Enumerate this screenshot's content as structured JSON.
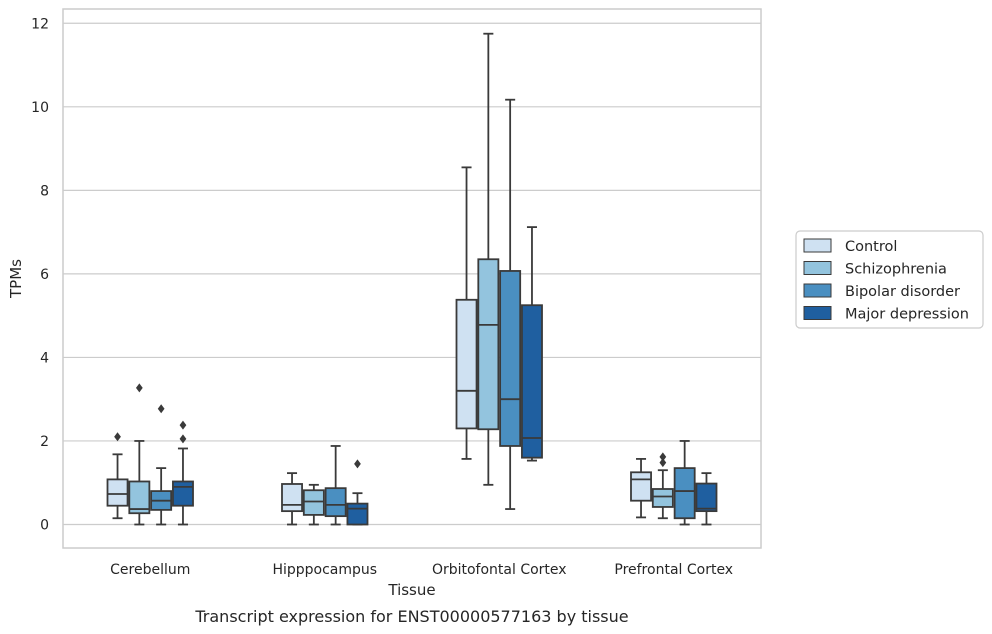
{
  "chart_data": {
    "type": "boxplot",
    "title": "Transcript expression for ENST00000577163 by tissue",
    "xlabel": "Tissue",
    "ylabel": "TPMs",
    "ylim": [
      -0.55,
      12.35
    ],
    "yticks": [
      0,
      2,
      4,
      6,
      8,
      10,
      12
    ],
    "grid": "horizontal",
    "legend_position": "right",
    "categories": [
      "Cerebellum",
      "Hipppocampus",
      "Orbitofontal Cortex",
      "Prefrontal Cortex"
    ],
    "series": [
      {
        "name": "Control",
        "color": "#cfe1f2",
        "boxes": [
          {
            "whislo": 0.15,
            "q1": 0.45,
            "med": 0.73,
            "q3": 1.08,
            "whishi": 1.68,
            "fliers": [
              2.1
            ]
          },
          {
            "whislo": 0.0,
            "q1": 0.32,
            "med": 0.47,
            "q3": 0.97,
            "whishi": 1.23,
            "fliers": []
          },
          {
            "whislo": 1.57,
            "q1": 2.3,
            "med": 3.2,
            "q3": 5.38,
            "whishi": 8.55,
            "fliers": []
          },
          {
            "whislo": 0.17,
            "q1": 0.57,
            "med": 1.08,
            "q3": 1.25,
            "whishi": 1.57,
            "fliers": []
          }
        ]
      },
      {
        "name": "Schizophrenia",
        "color": "#93c4de",
        "boxes": [
          {
            "whislo": 0.0,
            "q1": 0.27,
            "med": 0.37,
            "q3": 1.03,
            "whishi": 2.0,
            "fliers": [
              3.27
            ]
          },
          {
            "whislo": 0.0,
            "q1": 0.23,
            "med": 0.55,
            "q3": 0.82,
            "whishi": 0.95,
            "fliers": []
          },
          {
            "whislo": 0.95,
            "q1": 2.28,
            "med": 4.78,
            "q3": 6.35,
            "whishi": 11.75,
            "fliers": []
          },
          {
            "whislo": 0.15,
            "q1": 0.42,
            "med": 0.67,
            "q3": 0.85,
            "whishi": 1.3,
            "fliers": [
              1.48,
              1.62
            ]
          }
        ]
      },
      {
        "name": "Bipolar disorder",
        "color": "#4a8fc1",
        "boxes": [
          {
            "whislo": 0.0,
            "q1": 0.35,
            "med": 0.57,
            "q3": 0.8,
            "whishi": 1.35,
            "fliers": [
              2.77
            ]
          },
          {
            "whislo": 0.0,
            "q1": 0.2,
            "med": 0.47,
            "q3": 0.87,
            "whishi": 1.88,
            "fliers": []
          },
          {
            "whislo": 0.37,
            "q1": 1.88,
            "med": 3.0,
            "q3": 6.07,
            "whishi": 10.17,
            "fliers": []
          },
          {
            "whislo": 0.0,
            "q1": 0.15,
            "med": 0.8,
            "q3": 1.35,
            "whishi": 2.0,
            "fliers": []
          }
        ]
      },
      {
        "name": "Major depression",
        "color": "#1f5fa0",
        "boxes": [
          {
            "whislo": 0.0,
            "q1": 0.45,
            "med": 0.9,
            "q3": 1.03,
            "whishi": 1.82,
            "fliers": [
              2.05,
              2.38
            ]
          },
          {
            "whislo": 0.0,
            "q1": 0.0,
            "med": 0.38,
            "q3": 0.5,
            "whishi": 0.75,
            "fliers": [
              1.45
            ]
          },
          {
            "whislo": 1.53,
            "q1": 1.6,
            "med": 2.07,
            "q3": 5.25,
            "whishi": 7.12,
            "fliers": []
          },
          {
            "whislo": 0.0,
            "q1": 0.32,
            "med": 0.38,
            "q3": 0.98,
            "whishi": 1.23,
            "fliers": []
          }
        ]
      }
    ]
  }
}
